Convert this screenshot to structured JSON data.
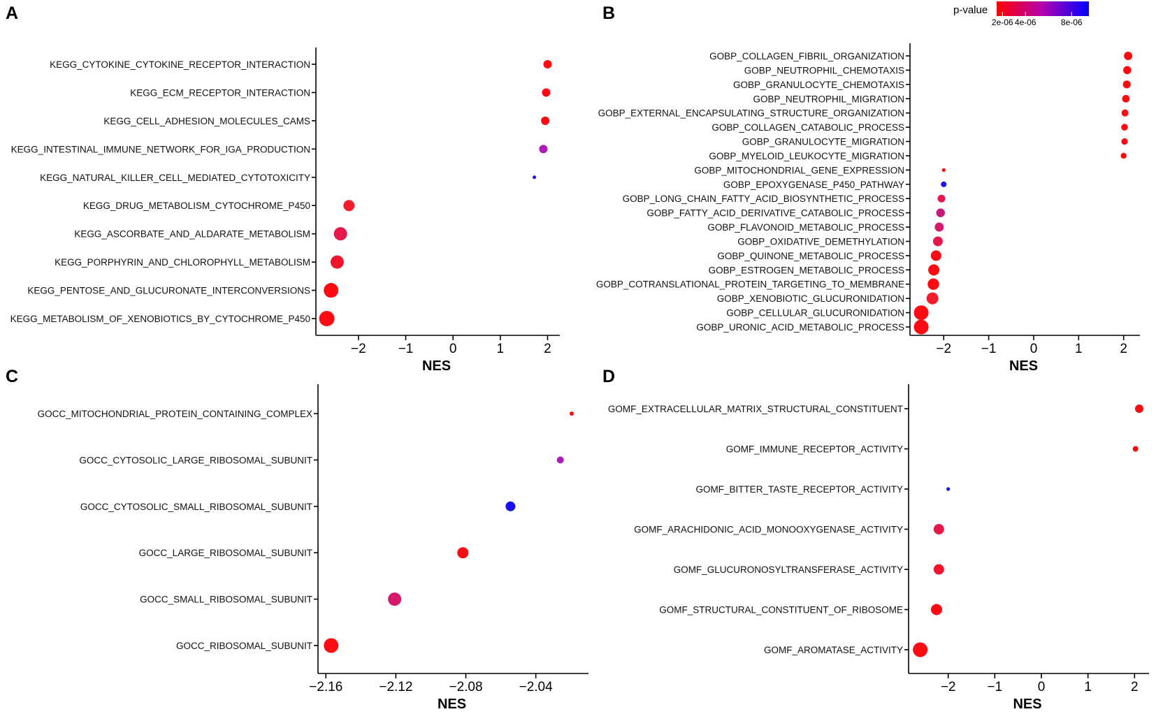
{
  "legend": {
    "title": "p-value",
    "ticks": [
      {
        "label": "2e-06",
        "value": 2e-06
      },
      {
        "label": "4e-06",
        "value": 4e-06
      },
      {
        "label": "8e-06",
        "value": 8e-06
      }
    ],
    "range": [
      1.5e-06,
      9.5e-06
    ],
    "low_color": "#ff0000",
    "high_color": "#0000ff"
  },
  "chart_data": [
    {
      "panel": "A",
      "type": "scatter",
      "xlabel": "NES",
      "xlim": [
        -2.9,
        2.2
      ],
      "xticks": [
        -2,
        -1,
        0,
        1,
        2
      ],
      "xtick_labels": [
        "−2",
        "−1",
        "0",
        "1",
        "2"
      ],
      "terms": [
        {
          "label": "KEGG_CYTOKINE_CYTOKINE_RECEPTOR_INTERACTION",
          "nes": 2.0,
          "size": 6,
          "color": "#ff0a12"
        },
        {
          "label": "KEGG_ECM_RECEPTOR_INTERACTION",
          "nes": 1.97,
          "size": 6,
          "color": "#ff0a12"
        },
        {
          "label": "KEGG_CELL_ADHESION_MOLECULES_CAMS",
          "nes": 1.95,
          "size": 6,
          "color": "#ff0a12"
        },
        {
          "label": "KEGG_INTESTINAL_IMMUNE_NETWORK_FOR_IGA_PRODUCTION",
          "nes": 1.91,
          "size": 6,
          "color": "#b01ab8"
        },
        {
          "label": "KEGG_NATURAL_KILLER_CELL_MEDIATED_CYTOTOXICITY",
          "nes": 1.72,
          "size": 2.5,
          "color": "#1a10e8"
        },
        {
          "label": "KEGG_DRUG_METABOLISM_CYTOCHROME_P450",
          "nes": -2.2,
          "size": 8,
          "color": "#f51c2e"
        },
        {
          "label": "KEGG_ASCORBATE_AND_ALDARATE_METABOLISM",
          "nes": -2.38,
          "size": 9.5,
          "color": "#e4184c"
        },
        {
          "label": "KEGG_PORPHYRIN_AND_CHLOROPHYLL_METABOLISM",
          "nes": -2.45,
          "size": 9.5,
          "color": "#f0152c"
        },
        {
          "label": "KEGG_PENTOSE_AND_GLUCURONATE_INTERCONVERSIONS",
          "nes": -2.58,
          "size": 10.5,
          "color": "#ff0a12"
        },
        {
          "label": "KEGG_METABOLISM_OF_XENOBIOTICS_BY_CYTOCHROME_P450",
          "nes": -2.67,
          "size": 11,
          "color": "#ff0a12"
        }
      ]
    },
    {
      "panel": "B",
      "type": "scatter",
      "xlabel": "NES",
      "xlim": [
        -2.75,
        2.3
      ],
      "xticks": [
        -2,
        -1,
        0,
        1,
        2
      ],
      "xtick_labels": [
        "−2",
        "−1",
        "0",
        "1",
        "2"
      ],
      "terms": [
        {
          "label": "GOBP_COLLAGEN_FIBRIL_ORGANIZATION",
          "nes": 2.1,
          "size": 6,
          "color": "#ff0a12"
        },
        {
          "label": "GOBP_NEUTROPHIL_CHEMOTAXIS",
          "nes": 2.08,
          "size": 5.8,
          "color": "#ff0a12"
        },
        {
          "label": "GOBP_GRANULOCYTE_CHEMOTAXIS",
          "nes": 2.07,
          "size": 5.6,
          "color": "#ff0a12"
        },
        {
          "label": "GOBP_NEUTROPHIL_MIGRATION",
          "nes": 2.05,
          "size": 5.4,
          "color": "#ff0a12"
        },
        {
          "label": "GOBP_EXTERNAL_ENCAPSULATING_STRUCTURE_ORGANIZATION",
          "nes": 2.03,
          "size": 5,
          "color": "#ff0a12"
        },
        {
          "label": "GOBP_COLLAGEN_CATABOLIC_PROCESS",
          "nes": 2.02,
          "size": 4.8,
          "color": "#ff0a12"
        },
        {
          "label": "GOBP_GRANULOCYTE_MIGRATION",
          "nes": 2.02,
          "size": 4.6,
          "color": "#ff0a12"
        },
        {
          "label": "GOBP_MYELOID_LEUKOCYTE_MIGRATION",
          "nes": 2.0,
          "size": 4.2,
          "color": "#ff0a12"
        },
        {
          "label": "GOBP_MITOCHONDRIAL_GENE_EXPRESSION",
          "nes": -2.0,
          "size": 2.6,
          "color": "#ff0a12"
        },
        {
          "label": "GOBP_EPOXYGENASE_P450_PATHWAY",
          "nes": -2.0,
          "size": 4,
          "color": "#1a10e8"
        },
        {
          "label": "GOBP_LONG_CHAIN_FATTY_ACID_BIOSYNTHETIC_PROCESS",
          "nes": -2.05,
          "size": 5.5,
          "color": "#e4184c"
        },
        {
          "label": "GOBP_FATTY_ACID_DERIVATIVE_CATABOLIC_PROCESS",
          "nes": -2.07,
          "size": 6.2,
          "color": "#c21a78"
        },
        {
          "label": "GOBP_FLAVONOID_METABOLIC_PROCESS",
          "nes": -2.1,
          "size": 6.5,
          "color": "#d4186a"
        },
        {
          "label": "GOBP_OXIDATIVE_DEMETHYLATION",
          "nes": -2.13,
          "size": 7,
          "color": "#e4184c"
        },
        {
          "label": "GOBP_QUINONE_METABOLIC_PROCESS",
          "nes": -2.17,
          "size": 7.5,
          "color": "#ff0a12"
        },
        {
          "label": "GOBP_ESTROGEN_METABOLIC_PROCESS",
          "nes": -2.22,
          "size": 8,
          "color": "#ff0a12"
        },
        {
          "label": "GOBP_COTRANSLATIONAL_PROTEIN_TARGETING_TO_MEMBRANE",
          "nes": -2.23,
          "size": 8.2,
          "color": "#ff0a12"
        },
        {
          "label": "GOBP_XENOBIOTIC_GLUCURONIDATION",
          "nes": -2.25,
          "size": 8.5,
          "color": "#f51c2e"
        },
        {
          "label": "GOBP_CELLULAR_GLUCURONIDATION",
          "nes": -2.5,
          "size": 10.5,
          "color": "#ff0a12"
        },
        {
          "label": "GOBP_URONIC_ACID_METABOLIC_PROCESS",
          "nes": -2.5,
          "size": 10.5,
          "color": "#ff0a12"
        }
      ]
    },
    {
      "panel": "C",
      "type": "scatter",
      "xlabel": "NES",
      "xlim": [
        -2.1645,
        -2.0115
      ],
      "xticks": [
        -2.16,
        -2.12,
        -2.08,
        -2.04
      ],
      "xtick_labels": [
        "−2.16",
        "−2.12",
        "−2.08",
        "−2.04"
      ],
      "terms": [
        {
          "label": "GOCC_MITOCHONDRIAL_PROTEIN_CONTAINING_COMPLEX",
          "nes": -2.0195,
          "size": 3,
          "color": "#ff0a12"
        },
        {
          "label": "GOCC_CYTOSOLIC_LARGE_RIBOSOMAL_SUBUNIT",
          "nes": -2.026,
          "size": 5,
          "color": "#b01ab8"
        },
        {
          "label": "GOCC_CYTOSOLIC_SMALL_RIBOSOMAL_SUBUNIT",
          "nes": -2.0545,
          "size": 7,
          "color": "#1a10e8"
        },
        {
          "label": "GOCC_LARGE_RIBOSOMAL_SUBUNIT",
          "nes": -2.0817,
          "size": 8,
          "color": "#ff0a12"
        },
        {
          "label": "GOCC_SMALL_RIBOSOMAL_SUBUNIT",
          "nes": -2.1207,
          "size": 9.5,
          "color": "#d4186a"
        },
        {
          "label": "GOCC_RIBOSOMAL_SUBUNIT",
          "nes": -2.157,
          "size": 10.5,
          "color": "#ff0a12"
        }
      ]
    },
    {
      "panel": "D",
      "type": "scatter",
      "xlabel": "NES",
      "xlim": [
        -2.85,
        2.25
      ],
      "xticks": [
        -2,
        -1,
        0,
        1,
        2
      ],
      "xtick_labels": [
        "−2",
        "−1",
        "0",
        "1",
        "2"
      ],
      "terms": [
        {
          "label": "GOMF_EXTRACELLULAR_MATRIX_STRUCTURAL_CONSTITUENT",
          "nes": 2.1,
          "size": 6,
          "color": "#ff0a12"
        },
        {
          "label": "GOMF_IMMUNE_RECEPTOR_ACTIVITY",
          "nes": 2.02,
          "size": 4,
          "color": "#ff0a12"
        },
        {
          "label": "GOMF_BITTER_TASTE_RECEPTOR_ACTIVITY",
          "nes": -2.0,
          "size": 2.6,
          "color": "#1a10e8"
        },
        {
          "label": "GOMF_ARACHIDONIC_ACID_MONOOXYGENASE_ACTIVITY",
          "nes": -2.2,
          "size": 7.5,
          "color": "#e4184c"
        },
        {
          "label": "GOMF_GLUCURONOSYLTRANSFERASE_ACTIVITY",
          "nes": -2.2,
          "size": 7.5,
          "color": "#f0152c"
        },
        {
          "label": "GOMF_STRUCTURAL_CONSTITUENT_OF_RIBOSOME",
          "nes": -2.25,
          "size": 8,
          "color": "#ff0a12"
        },
        {
          "label": "GOMF_AROMATASE_ACTIVITY",
          "nes": -2.6,
          "size": 10.5,
          "color": "#ff0a12"
        }
      ]
    }
  ]
}
